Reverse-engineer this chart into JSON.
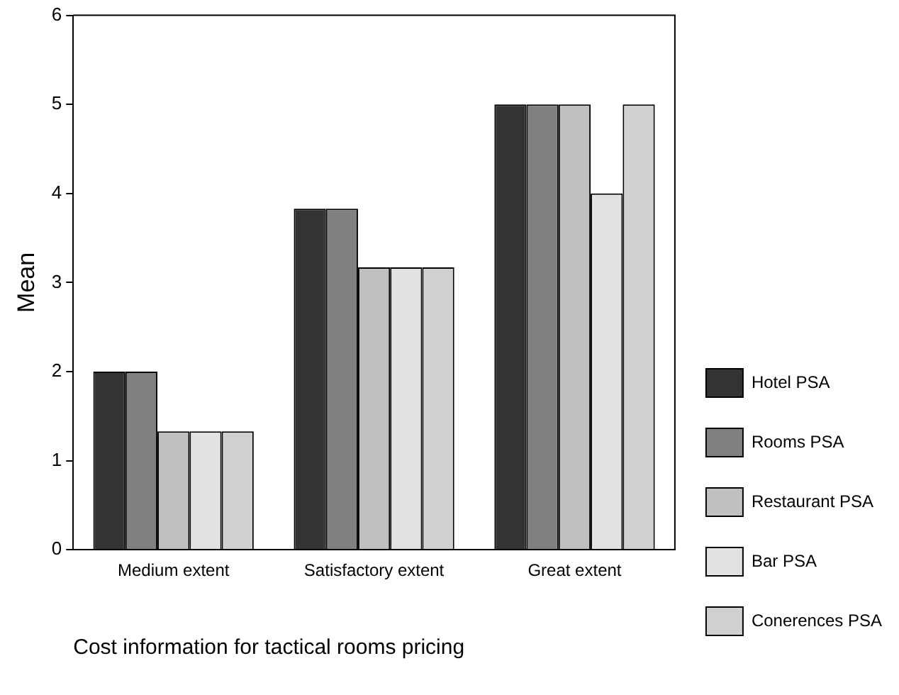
{
  "chart_data": {
    "type": "bar",
    "xlabel": "Cost information for tactical rooms pricing",
    "ylabel": "Mean",
    "categories": [
      "Medium extent",
      "Satisfactory extent",
      "Great extent"
    ],
    "series": [
      {
        "name": "Hotel PSA",
        "color": "#333333",
        "values": [
          2,
          3.83,
          5
        ]
      },
      {
        "name": "Rooms PSA",
        "color": "#808080",
        "values": [
          2,
          3.83,
          5
        ]
      },
      {
        "name": "Restaurant PSA",
        "color": "#c0c0c0",
        "values": [
          1.33,
          3.17,
          5
        ]
      },
      {
        "name": "Bar PSA",
        "color": "#e2e2e2",
        "values": [
          1.33,
          3.17,
          4
        ]
      },
      {
        "name": "Conerences PSA",
        "color": "#d0d0d0",
        "values": [
          1.33,
          3.17,
          5
        ]
      }
    ],
    "ylim": [
      0,
      6
    ],
    "yticks": [
      0,
      1,
      2,
      3,
      4,
      5,
      6
    ],
    "grid": false,
    "legend": "right"
  }
}
